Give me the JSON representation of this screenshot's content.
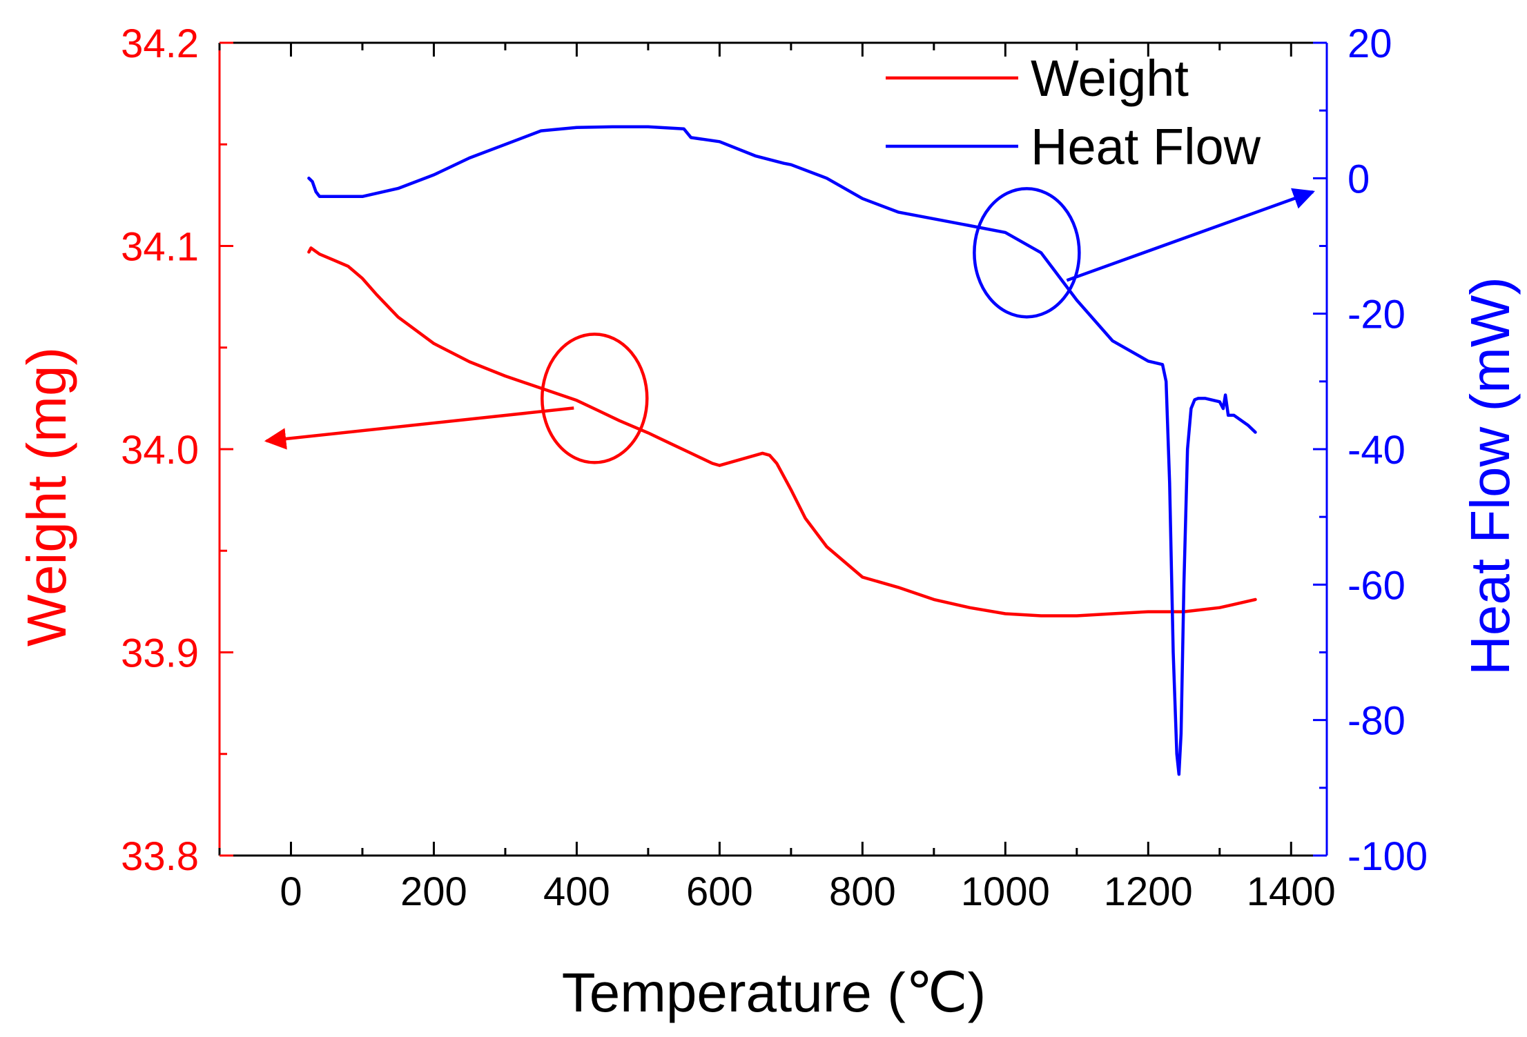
{
  "colors": {
    "weight": "#ff0000",
    "heat_flow": "#0000ff",
    "axis": "#000000"
  },
  "chart_data": {
    "type": "line",
    "title": "",
    "xlabel": "Temperature (℃)",
    "xlim": [
      -100,
      1450
    ],
    "xticks": [
      0,
      200,
      400,
      600,
      800,
      1000,
      1200,
      1400
    ],
    "xtick_labels": [
      "0",
      "200",
      "400",
      "600",
      "800",
      "1000",
      "1200",
      "1400"
    ],
    "y_left": {
      "label": "Weight (mg)",
      "lim": [
        33.8,
        34.2
      ],
      "ticks": [
        33.8,
        33.9,
        34.0,
        34.1,
        34.2
      ],
      "tick_labels": [
        "33.8",
        "33.9",
        "34.0",
        "34.1",
        "34.2"
      ]
    },
    "y_right": {
      "label": "Heat Flow (mW)",
      "lim": [
        -100,
        20
      ],
      "ticks": [
        -100,
        -80,
        -60,
        -40,
        -20,
        0,
        20
      ],
      "tick_labels": [
        "-100",
        "-80",
        "-60",
        "-40",
        "-20",
        "0",
        "20"
      ]
    },
    "legend": {
      "position": "top-right",
      "entries": [
        "Weight",
        "Heat Flow"
      ]
    },
    "series": [
      {
        "name": "Weight",
        "axis": "left",
        "x": [
          25,
          28,
          40,
          60,
          80,
          100,
          120,
          150,
          200,
          250,
          300,
          350,
          400,
          430,
          460,
          500,
          530,
          560,
          590,
          600,
          620,
          640,
          660,
          670,
          680,
          700,
          720,
          750,
          800,
          850,
          900,
          950,
          1000,
          1050,
          1100,
          1150,
          1200,
          1250,
          1300,
          1350
        ],
        "values": [
          34.097,
          34.099,
          34.096,
          34.093,
          34.09,
          34.084,
          34.076,
          34.065,
          34.052,
          34.043,
          34.036,
          34.03,
          34.024,
          34.019,
          34.014,
          34.008,
          34.003,
          33.998,
          33.993,
          33.992,
          33.994,
          33.996,
          33.998,
          33.997,
          33.993,
          33.98,
          33.966,
          33.952,
          33.937,
          33.932,
          33.926,
          33.922,
          33.919,
          33.918,
          33.918,
          33.919,
          33.92,
          33.92,
          33.922,
          33.926
        ]
      },
      {
        "name": "Heat Flow",
        "axis": "right",
        "x": [
          25,
          30,
          35,
          40,
          50,
          80,
          100,
          150,
          200,
          250,
          300,
          350,
          400,
          450,
          500,
          550,
          560,
          600,
          650,
          690,
          700,
          750,
          800,
          850,
          900,
          950,
          1000,
          1050,
          1100,
          1150,
          1200,
          1220,
          1225,
          1230,
          1235,
          1240,
          1243,
          1246,
          1250,
          1255,
          1260,
          1265,
          1270,
          1280,
          1300,
          1305,
          1308,
          1312,
          1320,
          1340,
          1350
        ],
        "values": [
          0,
          -0.5,
          -2,
          -2.7,
          -2.7,
          -2.7,
          -2.7,
          -1.5,
          0.5,
          3,
          5,
          7,
          7.5,
          7.6,
          7.6,
          7.3,
          6,
          5.4,
          3.3,
          2.2,
          2,
          0,
          -3,
          -5,
          -6,
          -7,
          -8,
          -11,
          -18,
          -24,
          -27,
          -27.5,
          -30,
          -45,
          -70,
          -85,
          -88,
          -82,
          -60,
          -40,
          -34,
          -32.7,
          -32.5,
          -32.5,
          -33,
          -34,
          -32,
          -35,
          -35,
          -36.5,
          -37.5
        ]
      }
    ],
    "annotations": [
      {
        "type": "ellipse",
        "series": "Weight",
        "center": [
          425,
          34.025
        ],
        "arrow_to": "left axis"
      },
      {
        "type": "ellipse",
        "series": "Heat Flow",
        "center": [
          1030,
          -11
        ],
        "arrow_to": "right axis"
      }
    ]
  }
}
